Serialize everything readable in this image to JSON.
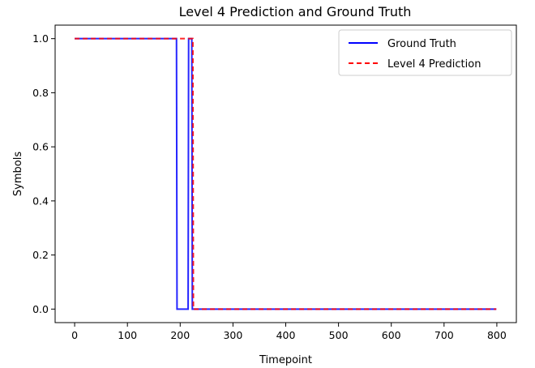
{
  "chart_data": {
    "type": "line",
    "title": "Level 4 Prediction and Ground Truth",
    "xlabel": "Timepoint",
    "ylabel": "Symbols",
    "xlim": [
      -37,
      837
    ],
    "ylim": [
      -0.05,
      1.05
    ],
    "xticks": [
      0,
      100,
      200,
      300,
      400,
      500,
      600,
      700,
      800
    ],
    "yticks": [
      0.0,
      0.2,
      0.4,
      0.6,
      0.8,
      1.0
    ],
    "xtick_labels": [
      "0",
      "100",
      "200",
      "300",
      "400",
      "500",
      "600",
      "700",
      "800"
    ],
    "ytick_labels": [
      "0.0",
      "0.2",
      "0.4",
      "0.6",
      "0.8",
      "1.0"
    ],
    "grid": false,
    "legend_position": "top-right",
    "series": [
      {
        "name": "Ground Truth",
        "color": "#0000ff",
        "style": "solid",
        "x": [
          0,
          193,
          194,
          215,
          216,
          222,
          223,
          799
        ],
        "y": [
          1,
          1,
          0,
          0,
          1,
          1,
          0,
          0
        ]
      },
      {
        "name": "Level 4 Prediction",
        "color": "#ff0000",
        "style": "dashed",
        "x": [
          0,
          224,
          225,
          799
        ],
        "y": [
          1,
          1,
          0,
          0
        ]
      }
    ]
  }
}
